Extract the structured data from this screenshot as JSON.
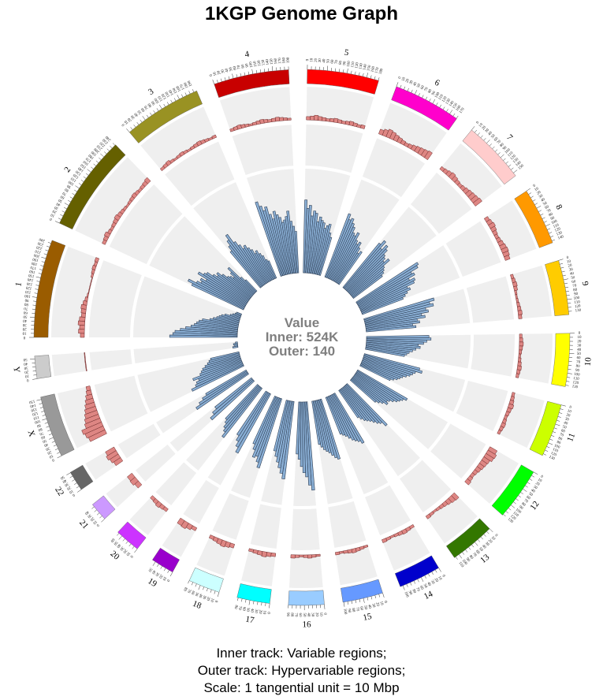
{
  "title": "1KGP Genome Graph",
  "caption": {
    "line1": "Inner track: Variable regions;",
    "line2": "Outer track: Hypervariable regions;",
    "line3": "Scale: 1 tangential unit = 10 Mbp"
  },
  "center": {
    "heading": "Value",
    "inner": "Inner: 524K",
    "outer": "Outer: 140"
  },
  "chart_data": {
    "type": "circular-histogram",
    "tracks": [
      "inner",
      "outer"
    ],
    "inner_max": 524000,
    "outer_max": 140,
    "scale_mbp_per_tick": 10,
    "colors": {
      "inner_fill": "#8aafd5",
      "inner_stroke": "#2f3f55",
      "outer_fill": "#de8683",
      "outer_stroke": "#6b2a2a",
      "track_bg": "#efefef"
    },
    "chromosomes": [
      {
        "name": "1",
        "length": 248,
        "color": "#9a5c00",
        "inner": [
          0.65,
          0.62,
          0.6,
          0.55,
          0.5,
          0.45,
          0.42,
          0.4,
          0.38,
          0.35,
          0.28,
          0.25,
          0.22,
          0.2,
          0.18,
          0.15,
          0.1,
          0.08,
          0.06,
          0.05
        ],
        "outer": [
          0.12,
          0.18,
          0.15,
          0.2,
          0.17,
          0.12,
          0.14,
          0.16,
          0.12,
          0.08,
          0.04,
          0.02,
          0.02,
          0.02,
          0.02,
          0.06,
          0.08,
          0.1,
          0.08,
          0.1
        ]
      },
      {
        "name": "2",
        "length": 242,
        "color": "#656000",
        "inner": [
          0.55,
          0.6,
          0.52,
          0.48,
          0.5,
          0.45,
          0.55,
          0.5,
          0.48,
          0.42,
          0.38,
          0.4,
          0.35,
          0.3,
          0.28,
          0.25,
          0.3,
          0.35,
          0.2,
          0.15
        ],
        "outer": [
          0.1,
          0.12,
          0.15,
          0.1,
          0.08,
          0.1,
          0.12,
          0.15,
          0.12,
          0.1,
          0.08,
          0.06,
          0.08,
          0.1,
          0.12,
          0.1,
          0.08,
          0.1,
          0.12,
          0.15
        ]
      },
      {
        "name": "3",
        "length": 198,
        "color": "#999223",
        "inner": [
          0.45,
          0.5,
          0.55,
          0.6,
          0.5,
          0.45,
          0.4,
          0.42,
          0.38,
          0.35,
          0.3,
          0.32,
          0.28,
          0.25,
          0.2,
          0.18
        ],
        "outer": [
          0.08,
          0.1,
          0.12,
          0.08,
          0.06,
          0.08,
          0.1,
          0.08,
          0.06,
          0.08,
          0.1,
          0.12,
          0.1,
          0.08,
          0.06,
          0.08
        ]
      },
      {
        "name": "4",
        "length": 190,
        "color": "#c80000",
        "inner": [
          0.75,
          0.7,
          0.65,
          0.68,
          0.6,
          0.55,
          0.62,
          0.58,
          0.55,
          0.5,
          0.52,
          0.55,
          0.6,
          0.5,
          0.45,
          0.4
        ],
        "outer": [
          0.08,
          0.1,
          0.12,
          0.1,
          0.08,
          0.06,
          0.08,
          0.1,
          0.12,
          0.1,
          0.08,
          0.1,
          0.12,
          0.1,
          0.08,
          0.06
        ]
      },
      {
        "name": "5",
        "length": 181,
        "color": "#ff0000",
        "inner": [
          0.7,
          0.62,
          0.65,
          0.55,
          0.6,
          0.58,
          0.5,
          0.55,
          0.52,
          0.5,
          0.45,
          0.48,
          0.5,
          0.42,
          0.38
        ],
        "outer": [
          0.1,
          0.12,
          0.15,
          0.12,
          0.1,
          0.08,
          0.1,
          0.12,
          0.1,
          0.08,
          0.1,
          0.12,
          0.1,
          0.08,
          0.1
        ]
      },
      {
        "name": "6",
        "length": 171,
        "color": "#ff00cc",
        "inner": [
          0.65,
          0.6,
          0.62,
          0.58,
          0.55,
          0.5,
          0.48,
          0.52,
          0.45,
          0.42,
          0.45,
          0.4,
          0.35,
          0.38
        ],
        "outer": [
          0.15,
          0.2,
          0.25,
          0.22,
          0.18,
          0.15,
          0.12,
          0.1,
          0.12,
          0.15,
          0.18,
          0.2,
          0.22,
          0.25
        ]
      },
      {
        "name": "7",
        "length": 159,
        "color": "#ffcccc",
        "inner": [
          0.55,
          0.6,
          0.52,
          0.58,
          0.55,
          0.5,
          0.48,
          0.45,
          0.5,
          0.42,
          0.4,
          0.38,
          0.35
        ],
        "outer": [
          0.1,
          0.12,
          0.15,
          0.18,
          0.15,
          0.12,
          0.1,
          0.12,
          0.15,
          0.18,
          0.2,
          0.22,
          0.25
        ]
      },
      {
        "name": "8",
        "length": 145,
        "color": "#ff9900",
        "inner": [
          0.7,
          0.68,
          0.6,
          0.62,
          0.55,
          0.6,
          0.58,
          0.5,
          0.52,
          0.48,
          0.45,
          0.42
        ],
        "outer": [
          0.12,
          0.15,
          0.18,
          0.15,
          0.12,
          0.1,
          0.12,
          0.15,
          0.18,
          0.2,
          0.18,
          0.15
        ]
      },
      {
        "name": "9",
        "length": 138,
        "color": "#ffcc00",
        "inner": [
          0.7,
          0.65,
          0.68,
          0.6,
          0.62,
          0.55,
          0.58,
          0.5,
          0.52,
          0.45,
          0.48
        ],
        "outer": [
          0.08,
          0.1,
          0.12,
          0.1,
          0.06,
          0.05,
          0.06,
          0.08,
          0.1,
          0.12,
          0.1
        ]
      },
      {
        "name": "10",
        "length": 134,
        "color": "#ffff00",
        "inner": [
          0.6,
          0.62,
          0.58,
          0.55,
          0.5,
          0.52,
          0.48,
          0.45,
          0.42,
          0.4,
          0.38
        ],
        "outer": [
          0.08,
          0.1,
          0.12,
          0.1,
          0.08,
          0.06,
          0.08,
          0.1,
          0.12,
          0.1,
          0.08
        ]
      },
      {
        "name": "11",
        "length": 135,
        "color": "#ccff00",
        "inner": [
          0.55,
          0.58,
          0.52,
          0.5,
          0.48,
          0.45,
          0.42,
          0.4,
          0.38,
          0.35,
          0.32
        ],
        "outer": [
          0.08,
          0.1,
          0.12,
          0.15,
          0.12,
          0.1,
          0.08,
          0.1,
          0.12,
          0.1,
          0.08
        ]
      },
      {
        "name": "12",
        "length": 133,
        "color": "#00ff00",
        "inner": [
          0.55,
          0.52,
          0.5,
          0.48,
          0.45,
          0.42,
          0.4,
          0.42,
          0.38,
          0.35,
          0.32
        ],
        "outer": [
          0.25,
          0.3,
          0.28,
          0.22,
          0.2,
          0.18,
          0.15,
          0.12,
          0.1,
          0.12,
          0.15
        ]
      },
      {
        "name": "13",
        "length": 114,
        "color": "#337700",
        "inner": [
          0.55,
          0.5,
          0.48,
          0.45,
          0.42,
          0.4,
          0.38,
          0.35,
          0.32
        ],
        "outer": [
          0.2,
          0.18,
          0.15,
          0.12,
          0.1,
          0.08,
          0.06,
          0.08,
          0.1
        ]
      },
      {
        "name": "14",
        "length": 107,
        "color": "#0000cc",
        "inner": [
          0.55,
          0.52,
          0.5,
          0.48,
          0.45,
          0.42,
          0.4,
          0.38
        ],
        "outer": [
          0.08,
          0.1,
          0.12,
          0.1,
          0.08,
          0.06,
          0.08,
          0.1
        ]
      },
      {
        "name": "15",
        "length": 102,
        "color": "#6699ff",
        "inner": [
          0.6,
          0.58,
          0.55,
          0.52,
          0.5,
          0.48,
          0.45,
          0.42
        ],
        "outer": [
          0.06,
          0.08,
          0.1,
          0.12,
          0.1,
          0.08,
          0.06,
          0.08
        ]
      },
      {
        "name": "16",
        "length": 90,
        "color": "#99ccff",
        "inner": [
          0.85,
          0.8,
          0.72,
          0.68,
          0.62,
          0.55,
          0.5
        ],
        "outer": [
          0.06,
          0.08,
          0.1,
          0.08,
          0.06,
          0.08,
          0.1
        ]
      },
      {
        "name": "17",
        "length": 83,
        "color": "#00ffff",
        "inner": [
          0.75,
          0.7,
          0.65,
          0.6,
          0.55,
          0.5
        ],
        "outer": [
          0.1,
          0.12,
          0.15,
          0.12,
          0.1,
          0.08
        ]
      },
      {
        "name": "18",
        "length": 80,
        "color": "#ccffff",
        "inner": [
          0.7,
          0.65,
          0.6,
          0.62,
          0.55,
          0.5
        ],
        "outer": [
          0.12,
          0.15,
          0.18,
          0.15,
          0.12,
          0.1
        ]
      },
      {
        "name": "19",
        "length": 59,
        "color": "#9900cc",
        "inner": [
          0.65,
          0.6,
          0.55,
          0.5
        ],
        "outer": [
          0.1,
          0.15,
          0.2,
          0.18
        ]
      },
      {
        "name": "20",
        "length": 64,
        "color": "#cc33ff",
        "inner": [
          0.6,
          0.55,
          0.52,
          0.48,
          0.45
        ],
        "outer": [
          0.1,
          0.12,
          0.15,
          0.12,
          0.1
        ]
      },
      {
        "name": "21",
        "length": 47,
        "color": "#cc99ff",
        "inner": [
          0.55,
          0.5,
          0.45
        ],
        "outer": [
          0.15,
          0.2,
          0.18
        ]
      },
      {
        "name": "22",
        "length": 51,
        "color": "#666666",
        "inner": [
          0.6,
          0.55,
          0.5,
          0.45
        ],
        "outer": [
          0.25,
          0.3,
          0.35,
          0.3
        ]
      },
      {
        "name": "X",
        "length": 156,
        "color": "#999999",
        "inner": [
          0.55,
          0.5,
          0.48,
          0.45,
          0.5,
          0.42,
          0.4,
          0.38,
          0.35,
          0.32,
          0.3,
          0.28
        ],
        "outer": [
          0.55,
          0.6,
          0.65,
          0.5,
          0.45,
          0.4,
          0.35,
          0.3,
          0.25,
          0.2,
          0.15,
          0.12
        ]
      },
      {
        "name": "Y",
        "length": 57,
        "color": "#cccccc",
        "inner": [
          0.05,
          0.03,
          0.04,
          0.02
        ],
        "outer": [
          0.02,
          0.02,
          0.02,
          0.02
        ]
      }
    ]
  }
}
